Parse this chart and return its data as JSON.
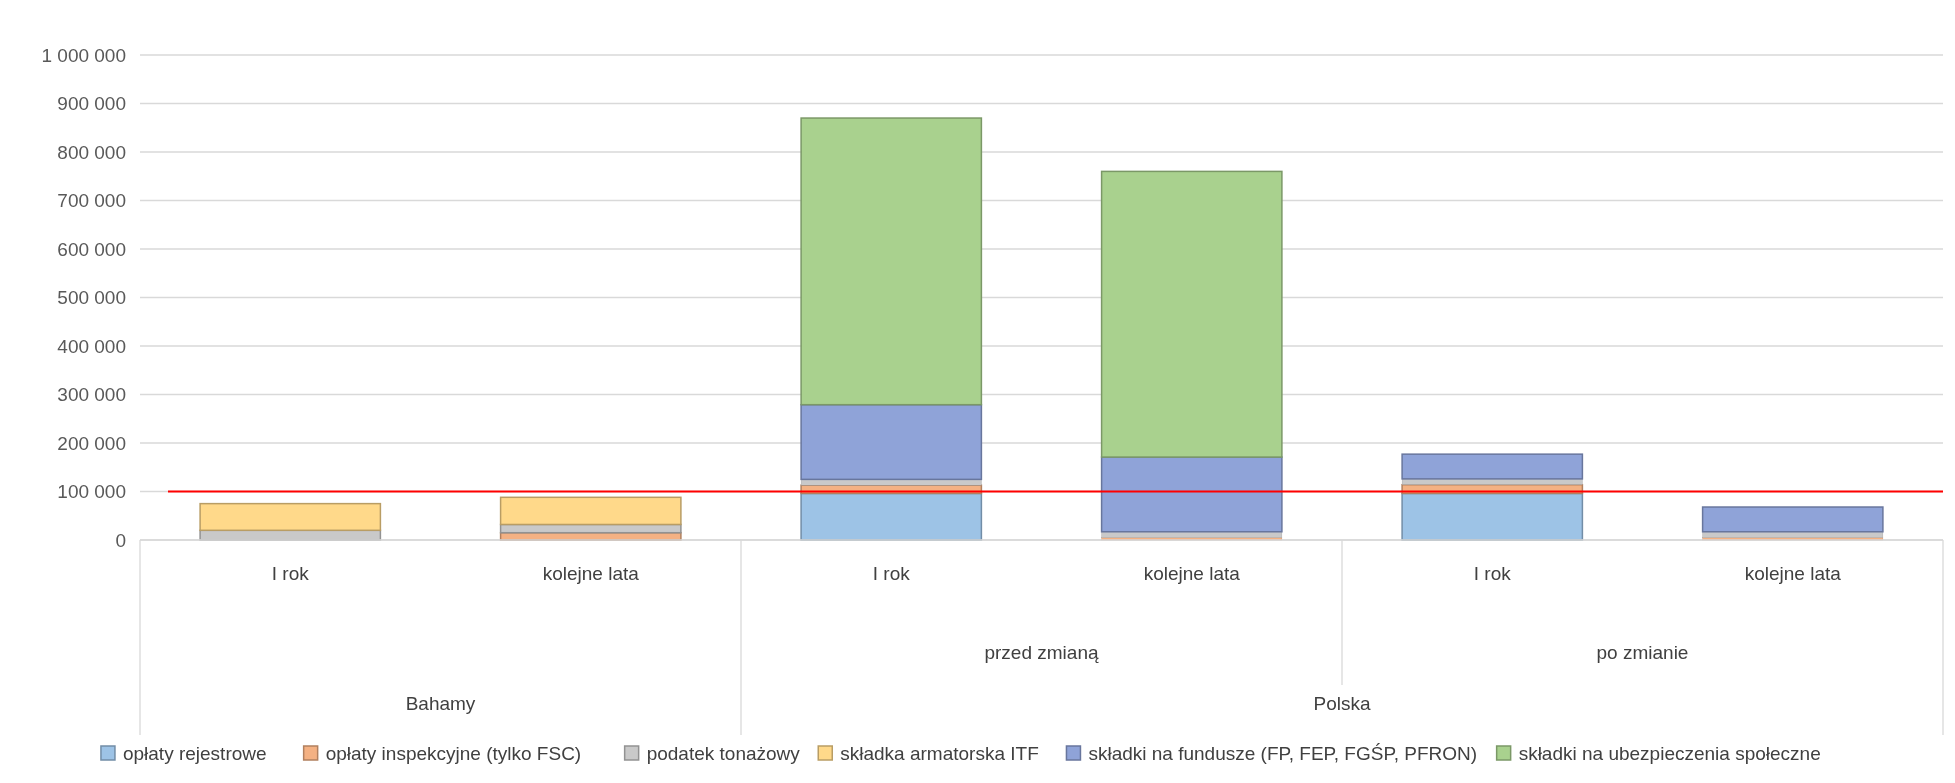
{
  "chart_data": {
    "type": "bar",
    "stacked": true,
    "categories": [
      "I rok",
      "kolejne lata",
      "I rok",
      "kolejne lata",
      "I rok",
      "kolejne lata"
    ],
    "series": [
      {
        "name": "opłaty rejestrowe",
        "color": "#9dc3e6",
        "values": [
          null,
          null,
          96000,
          0,
          96000,
          0
        ]
      },
      {
        "name": "opłaty inspekcyjne (tylko FSC)",
        "color": "#f4b183",
        "values": [
          0,
          15000,
          17000,
          5000,
          18000,
          5000
        ]
      },
      {
        "name": "podatek tonażowy",
        "color": "#c9c9c9",
        "values": [
          20000,
          17000,
          12000,
          12000,
          12000,
          12000
        ]
      },
      {
        "name": "składka armatorska ITF",
        "color": "#ffd98a",
        "values": [
          55000,
          56000,
          0,
          0,
          0,
          0
        ]
      },
      {
        "name": "składki na fundusze (FP, FEP, FGŚP, PFRON)",
        "color": "#8fa3d8",
        "values": [
          0,
          0,
          154000,
          154000,
          51000,
          51000
        ]
      },
      {
        "name": "składki na ubezpieczenia społeczne",
        "color": "#a9d18e",
        "values": [
          0,
          0,
          591000,
          589000,
          0,
          0
        ]
      }
    ],
    "ylim": [
      0,
      1000000
    ],
    "yticks": [
      0,
      {
        "value": 100000,
        "label": "100 000"
      },
      {
        "value": 200000,
        "label": "200 000"
      },
      {
        "value": 300000,
        "label": "300 000"
      },
      {
        "value": 400000,
        "label": "400 000"
      },
      {
        "value": 500000,
        "label": "500 000"
      },
      {
        "value": 600000,
        "label": "600 000"
      },
      {
        "value": 700000,
        "label": "700 000"
      },
      {
        "value": 800000,
        "label": "800 000"
      },
      {
        "value": 900000,
        "label": "900 000"
      },
      {
        "value": 1000000,
        "label": "1 000 000"
      }
    ],
    "grid": "y",
    "ref_lines": [
      {
        "axis": "y",
        "value": 100000,
        "color": "#ff0000"
      }
    ],
    "annotations": [
      "przed zmianą",
      "po zmianie",
      "Bahamy",
      "Polska"
    ],
    "legend": "bottom"
  }
}
